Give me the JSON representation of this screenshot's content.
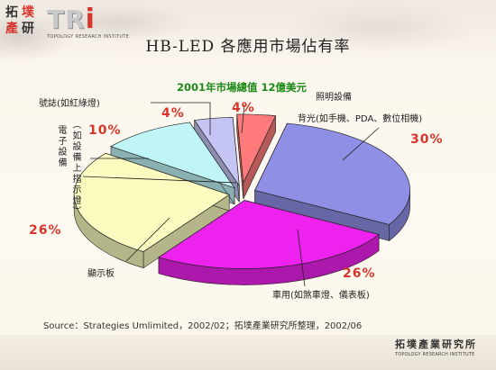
{
  "logo": {
    "chars": [
      "拓",
      "墣",
      "產",
      "研"
    ],
    "wordmark_main": "TR",
    "wordmark_dot": "i",
    "wordmark_sub": "TOPOLOGY RESEARCH INSTITUTE"
  },
  "footer": {
    "logo_text": "拓墣產業研究所",
    "logo_sub": "TOPOLOGY RESEARCH INSTITUTE"
  },
  "source_text": "Source：Strategies Umlimited，2002/02；拓墣產業研究所整理，2002/06",
  "chart_data": {
    "type": "pie",
    "style": "3d-exploded",
    "title": "HB-LED 各應用市場佔有率",
    "subtitle": "2001年市場總值 12億美元",
    "slices": [
      {
        "label": "背光(如手機、PDA、數位相機)",
        "value": 30,
        "value_label": "30%",
        "color": "#8f8fe6"
      },
      {
        "label": "車用(如煞車燈、儀表板)",
        "value": 26,
        "value_label": "26%",
        "color": "#ee22ee"
      },
      {
        "label": "顯示板",
        "value": 26,
        "value_label": "26%",
        "color": "#fbfbc0"
      },
      {
        "label": "電子設備(如設備上指示燈)",
        "value": 10,
        "value_label": "10%",
        "color": "#bff5f7"
      },
      {
        "label": "號誌(如紅綠燈)",
        "value": 4,
        "value_label": "4%",
        "color": "#c5c5f5"
      },
      {
        "label": "照明設備",
        "value": 4,
        "value_label": "4%",
        "color": "#ff7b7b"
      }
    ]
  }
}
